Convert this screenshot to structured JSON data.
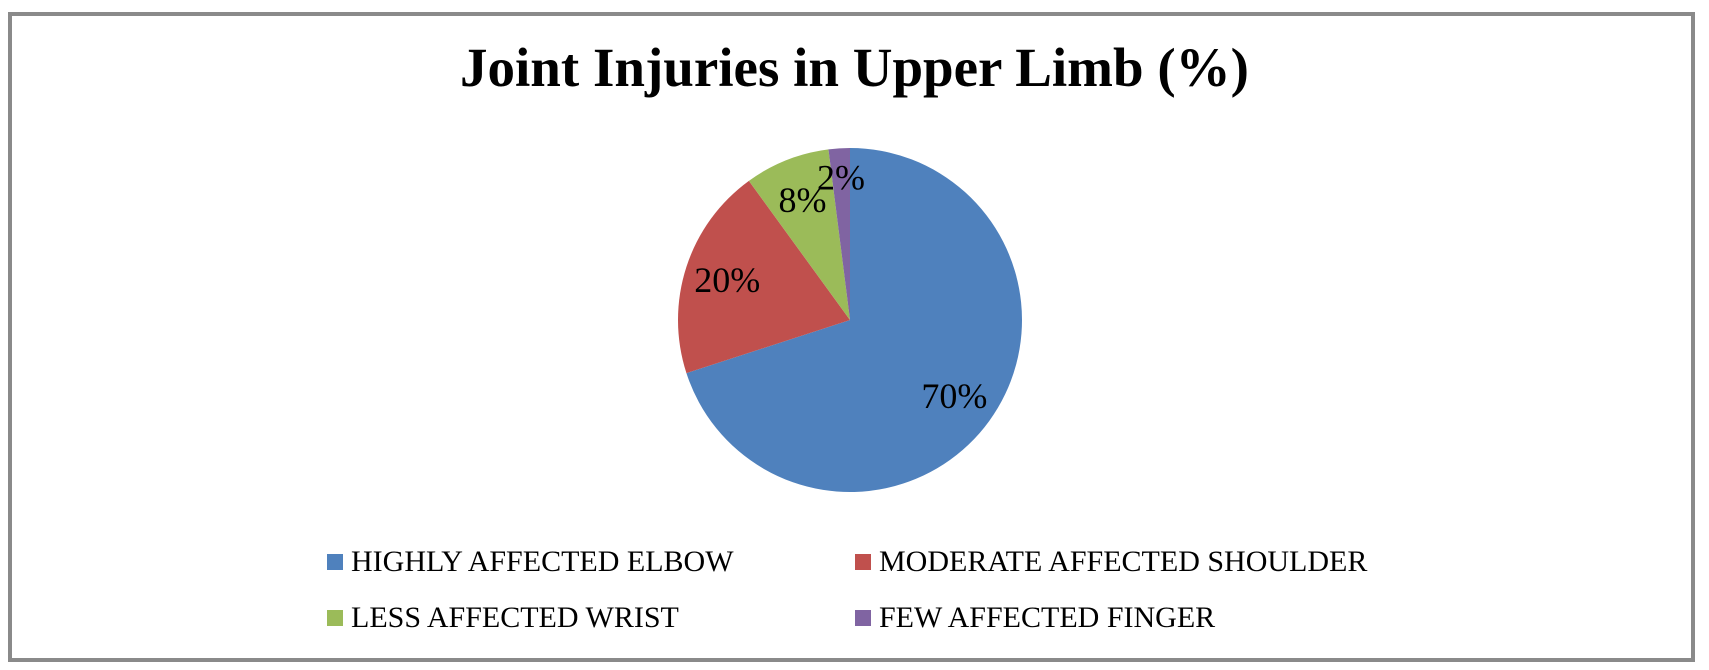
{
  "frame": {
    "border_color": "#8a8a8a",
    "background": "#ffffff"
  },
  "chart_data": {
    "type": "pie",
    "title": "Joint Injuries in Upper Limb (%)",
    "categories": [
      "HIGHLY AFFECTED ELBOW",
      "MODERATE AFFECTED SHOULDER",
      "LESS AFFECTED WRIST",
      "FEW AFFECTED FINGER"
    ],
    "values": [
      70,
      20,
      8,
      2
    ],
    "data_labels": [
      "70%",
      "20%",
      "8%",
      "2%"
    ],
    "colors": [
      "#4F81BD",
      "#C0504D",
      "#9BBB59",
      "#8064A2"
    ],
    "label_radius_fraction": [
      0.75,
      0.75,
      0.75,
      0.83
    ],
    "start_angle_deg": 0,
    "direction": "clockwise",
    "text_color": "#000000",
    "legend_position": "bottom",
    "legend_rows": 2,
    "legend_columns": 2
  }
}
